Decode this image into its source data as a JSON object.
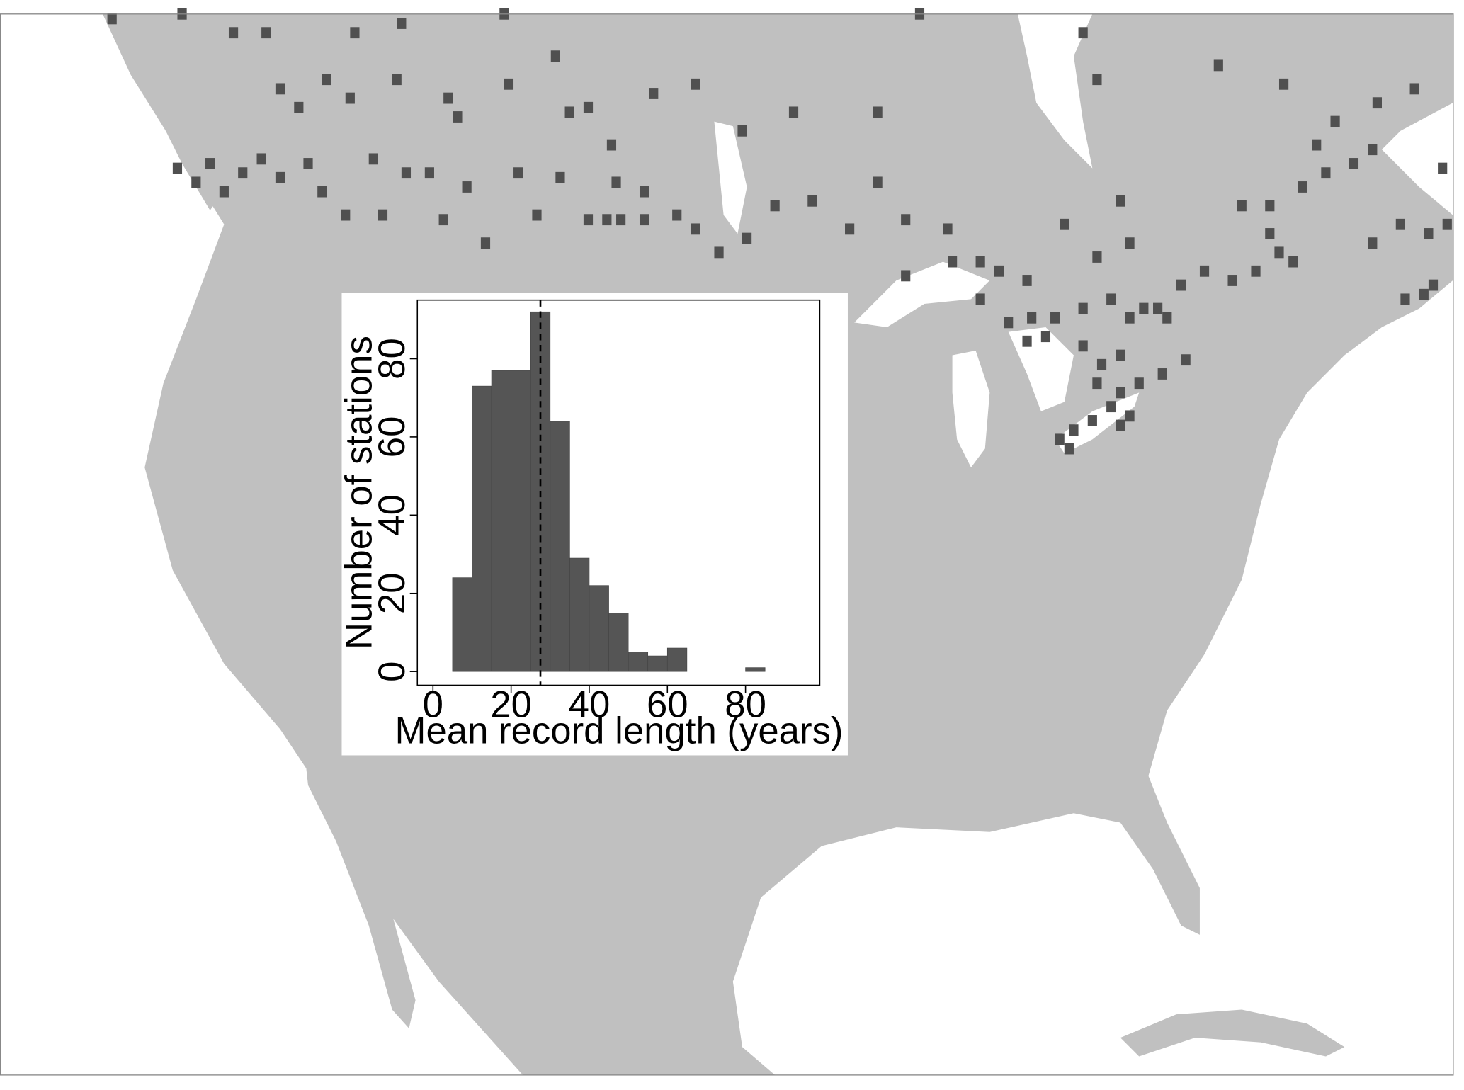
{
  "chart_data": {
    "type": "histogram",
    "xlabel": "Mean record length (years)",
    "ylabel": "Number of stations",
    "bins": [
      5,
      10,
      15,
      20,
      25,
      30,
      35,
      40,
      45,
      50,
      55,
      60,
      65,
      70,
      75,
      80,
      85
    ],
    "values": [
      24,
      73,
      77,
      77,
      92,
      64,
      29,
      22,
      15,
      5,
      4,
      6,
      0,
      0,
      0,
      1
    ],
    "color": "#555555",
    "reference_line": 27.5,
    "xlim": [
      -4,
      99
    ],
    "xticks": [
      0,
      20,
      40,
      60,
      80
    ],
    "ylim": [
      -3.5,
      95
    ],
    "yticks": [
      0,
      20,
      40,
      60,
      80
    ]
  }
}
